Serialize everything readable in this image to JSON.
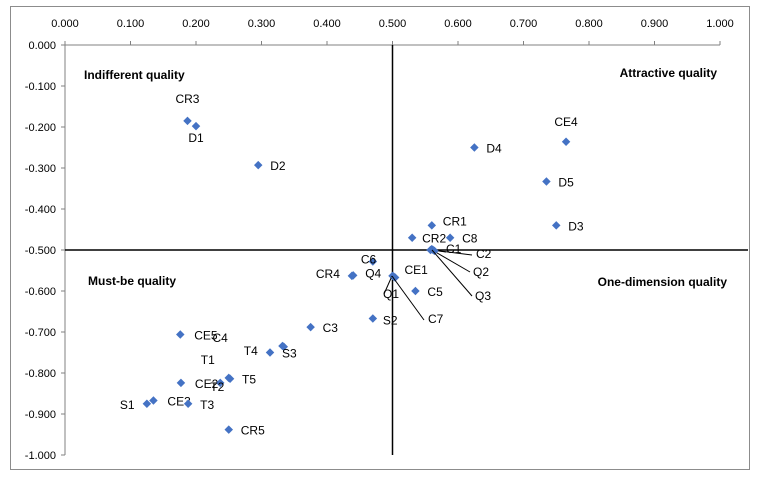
{
  "chart_data": {
    "type": "scatter",
    "title": "",
    "xlabel": "",
    "ylabel": "",
    "xlim": [
      0,
      1
    ],
    "ylim": [
      -1,
      0
    ],
    "x_ticks": [
      "0.000",
      "0.100",
      "0.200",
      "0.300",
      "0.400",
      "0.500",
      "0.600",
      "0.700",
      "0.800",
      "0.900",
      "1.000"
    ],
    "y_ticks": [
      "0.000",
      "-0.100",
      "-0.200",
      "-0.300",
      "-0.400",
      "-0.500",
      "-0.600",
      "-0.700",
      "-0.800",
      "-0.900",
      "-1.000"
    ],
    "x_axis_position": "top",
    "grid": false,
    "legend": "none",
    "marker_color": "#4472C4",
    "divider_x": 0.5,
    "divider_y": -0.5,
    "quadrant_labels": {
      "top_left": "Indifferent quality",
      "top_right": "Attractive quality",
      "bottom_left": "Must-be quality",
      "bottom_right": "One-dimension quality"
    },
    "points": [
      {
        "label": "CR3",
        "x": 0.187,
        "y": -0.185
      },
      {
        "label": "D1",
        "x": 0.2,
        "y": -0.198
      },
      {
        "label": "D2",
        "x": 0.295,
        "y": -0.293
      },
      {
        "label": "D4",
        "x": 0.625,
        "y": -0.25
      },
      {
        "label": "CE4",
        "x": 0.765,
        "y": -0.236
      },
      {
        "label": "D5",
        "x": 0.735,
        "y": -0.333
      },
      {
        "label": "D3",
        "x": 0.75,
        "y": -0.44
      },
      {
        "label": "CR1",
        "x": 0.56,
        "y": -0.44
      },
      {
        "label": "CR2",
        "x": 0.53,
        "y": -0.47
      },
      {
        "label": "C8",
        "x": 0.588,
        "y": -0.47
      },
      {
        "label": "C1",
        "x": 0.56,
        "y": -0.498
      },
      {
        "label": "C2",
        "x": 0.562,
        "y": -0.5
      },
      {
        "label": "Q2",
        "x": 0.558,
        "y": -0.5
      },
      {
        "label": "Q3",
        "x": 0.564,
        "y": -0.502
      },
      {
        "label": "C6",
        "x": 0.47,
        "y": -0.528
      },
      {
        "label": "CR4",
        "x": 0.438,
        "y": -0.563
      },
      {
        "label": "Q4",
        "x": 0.44,
        "y": -0.562
      },
      {
        "label": "CE1",
        "x": 0.5,
        "y": -0.563
      },
      {
        "label": "Q1",
        "x": 0.502,
        "y": -0.565
      },
      {
        "label": "C7",
        "x": 0.504,
        "y": -0.567
      },
      {
        "label": "C5",
        "x": 0.535,
        "y": -0.6
      },
      {
        "label": "S2",
        "x": 0.47,
        "y": -0.667
      },
      {
        "label": "C3",
        "x": 0.375,
        "y": -0.688
      },
      {
        "label": "CE5",
        "x": 0.176,
        "y": -0.706
      },
      {
        "label": "C4",
        "x": 0.332,
        "y": -0.734
      },
      {
        "label": "T4",
        "x": 0.334,
        "y": -0.736
      },
      {
        "label": "S3",
        "x": 0.313,
        "y": -0.75
      },
      {
        "label": "T1",
        "x": 0.25,
        "y": -0.812
      },
      {
        "label": "T5",
        "x": 0.252,
        "y": -0.814
      },
      {
        "label": "CE2",
        "x": 0.177,
        "y": -0.824
      },
      {
        "label": "T2",
        "x": 0.237,
        "y": -0.824
      },
      {
        "label": "S1",
        "x": 0.125,
        "y": -0.875
      },
      {
        "label": "CE3",
        "x": 0.135,
        "y": -0.867
      },
      {
        "label": "T3",
        "x": 0.188,
        "y": -0.875
      },
      {
        "label": "CR5",
        "x": 0.25,
        "y": -0.938
      }
    ]
  }
}
